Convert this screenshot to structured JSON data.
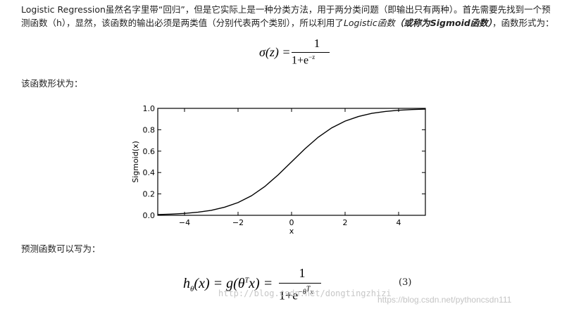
{
  "paragraph1": {
    "part1": "Logistic Regression虽然名字里带“回归”，但是它实际上是一种分类方法，用于两分类问题（即输出只有两种）。首先需要先找到一个预测函数（h），显然，该函数的输出必须是两类值（分别代表两个类别），所以利用了",
    "emph1": "Logistic函数",
    "emph2": "（或称为Sigmoid函数）",
    "part2": "，函数形式为："
  },
  "formula1": {
    "lhs": "σ(z) =",
    "num": "1",
    "den": "1+e",
    "exp": "−z"
  },
  "paragraph2": "该函数形状为：",
  "chart_data": {
    "type": "line",
    "title": "",
    "xlabel": "x",
    "ylabel": "Sigmoid(x)",
    "xlim": [
      -5,
      5
    ],
    "ylim": [
      0,
      1
    ],
    "xticks": [
      -4,
      -2,
      0,
      2,
      4
    ],
    "yticks": [
      0.0,
      0.2,
      0.4,
      0.6,
      0.8,
      1.0
    ],
    "xtick_labels": [
      "−4",
      "−2",
      "0",
      "2",
      "4"
    ],
    "ytick_labels": [
      "0.0",
      "0.2",
      "0.4",
      "0.6",
      "0.8",
      "1.0"
    ],
    "series": [
      {
        "x": [
          -5,
          -4.5,
          -4,
          -3.5,
          -3,
          -2.5,
          -2,
          -1.5,
          -1,
          -0.5,
          0,
          0.5,
          1,
          1.5,
          2,
          2.5,
          3,
          3.5,
          4,
          4.5,
          5
        ],
        "values": [
          0.007,
          0.011,
          0.018,
          0.029,
          0.047,
          0.076,
          0.119,
          0.182,
          0.269,
          0.378,
          0.5,
          0.622,
          0.731,
          0.818,
          0.881,
          0.924,
          0.953,
          0.971,
          0.982,
          0.989,
          0.993
        ]
      }
    ],
    "grid": false
  },
  "paragraph3": "预测函数可以写为：",
  "formula2": {
    "lhs": "h",
    "sub": "θ",
    "lhs_rest": "(x) = g(θ",
    "sup": "T",
    "lhs_end": "x) =",
    "num": "1",
    "den": "1+e",
    "exp": "−θ",
    "exp_sup": "T",
    "exp_end": "x",
    "eqnum": "(3)"
  },
  "watermarks": {
    "wm1": "http://blog.csdn.net/dongtingzhizi",
    "wm2": "https://blog.csdn.net/pythoncsdn111"
  }
}
